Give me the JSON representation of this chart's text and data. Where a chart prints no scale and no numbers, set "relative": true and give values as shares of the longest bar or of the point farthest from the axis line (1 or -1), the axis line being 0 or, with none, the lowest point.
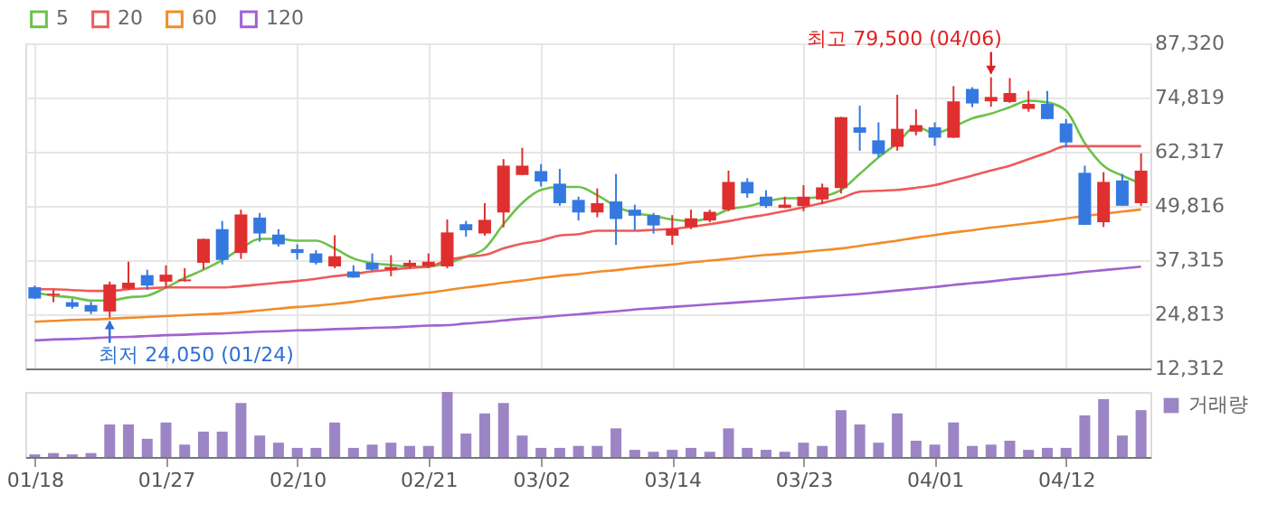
{
  "chart_data": [
    {
      "type": "candlestick",
      "categories": [
        null,
        null,
        null,
        null,
        null,
        null,
        null,
        null,
        null,
        null,
        null,
        null,
        null,
        null,
        null,
        null,
        null,
        null,
        null,
        null,
        null,
        null,
        null,
        null,
        null,
        null,
        null,
        null,
        null,
        null,
        null,
        null,
        null,
        null,
        null,
        null,
        null,
        null,
        null,
        null,
        null,
        null,
        null,
        null,
        null,
        null,
        null,
        null,
        null,
        null,
        null,
        null,
        null,
        null,
        null,
        null,
        null,
        null,
        null,
        null
      ],
      "ohlc": [
        [
          31050,
          31450,
          28350,
          28450
        ],
        [
          29200,
          30450,
          27600,
          29550
        ],
        [
          27600,
          28350,
          26100,
          26550
        ],
        [
          26950,
          27700,
          24850,
          25450
        ],
        [
          25450,
          32350,
          24050,
          31700
        ],
        [
          30700,
          36950,
          30450,
          32100
        ],
        [
          33850,
          35100,
          30450,
          31450
        ],
        [
          32350,
          36100,
          30850,
          33950
        ],
        [
          32450,
          35450,
          32350,
          32850
        ],
        [
          36700,
          42250,
          35200,
          42200
        ],
        [
          44450,
          46350,
          36300,
          37350
        ],
        [
          38950,
          48950,
          37600,
          47850
        ],
        [
          47100,
          48200,
          41550,
          43450
        ],
        [
          43200,
          44450,
          40450,
          40950
        ],
        [
          39850,
          40950,
          37450,
          38950
        ],
        [
          38850,
          39600,
          36300,
          36700
        ],
        [
          35850,
          43050,
          35450,
          38200
        ],
        [
          34700,
          36100,
          33250,
          33300
        ],
        [
          36700,
          38850,
          34800,
          35100
        ],
        [
          35100,
          38450,
          33600,
          35700
        ],
        [
          35850,
          37350,
          35450,
          36700
        ],
        [
          35850,
          38850,
          35450,
          36950
        ],
        [
          35850,
          46700,
          35450,
          43700
        ],
        [
          45600,
          46350,
          42700,
          44200
        ],
        [
          43450,
          50450,
          42950,
          46600
        ],
        [
          48300,
          60600,
          44850,
          59100
        ],
        [
          56950,
          63200,
          56900,
          59100
        ],
        [
          57850,
          59450,
          54300,
          55450
        ],
        [
          54950,
          58350,
          49850,
          50450
        ],
        [
          51200,
          51950,
          46450,
          48300
        ],
        [
          48300,
          53850,
          47200,
          50450
        ],
        [
          50850,
          57200,
          40800,
          46800
        ],
        [
          48950,
          50100,
          44200,
          47550
        ],
        [
          47700,
          48200,
          43450,
          45300
        ],
        [
          42950,
          47700,
          40800,
          44550
        ],
        [
          44950,
          48950,
          44450,
          46950
        ],
        [
          46450,
          48950,
          46050,
          48450
        ],
        [
          48950,
          57950,
          48600,
          55350
        ],
        [
          55350,
          56200,
          51700,
          52700
        ],
        [
          51950,
          53450,
          49350,
          49800
        ],
        [
          49350,
          51950,
          49300,
          50100
        ],
        [
          49800,
          54600,
          48600,
          51950
        ],
        [
          51300,
          54950,
          50200,
          54100
        ],
        [
          53950,
          70350,
          52700,
          70300
        ],
        [
          67950,
          72950,
          62550,
          66700
        ],
        [
          64950,
          69100,
          61050,
          61800
        ],
        [
          63450,
          75450,
          62550,
          67600
        ],
        [
          66950,
          72100,
          66100,
          68450
        ],
        [
          67950,
          69100,
          63700,
          65550
        ],
        [
          65550,
          77450,
          65500,
          73950
        ],
        [
          76800,
          77200,
          72600,
          73450
        ],
        [
          73950,
          79500,
          72700,
          74950
        ],
        [
          73800,
          79300,
          73600,
          75850
        ],
        [
          72200,
          76350,
          71550,
          73350
        ],
        [
          73350,
          76350,
          69800,
          69850
        ],
        [
          68850,
          69850,
          63300,
          64450
        ],
        [
          57450,
          59100,
          45400,
          45450
        ],
        [
          46050,
          57600,
          44950,
          55350
        ],
        [
          55700,
          57200,
          49800,
          49850
        ],
        [
          50450,
          61950,
          49800,
          57950
        ]
      ],
      "colors": [
        "#3579e0",
        "#e02f2f",
        "#3579e0",
        "#3579e0",
        "#e02f2f",
        "#e02f2f",
        "#3579e0",
        "#e02f2f",
        "#e02f2f",
        "#e02f2f",
        "#3579e0",
        "#e02f2f",
        "#3579e0",
        "#3579e0",
        "#3579e0",
        "#3579e0",
        "#e02f2f",
        "#3579e0",
        "#3579e0",
        "#e02f2f",
        "#e02f2f",
        "#e02f2f",
        "#e02f2f",
        "#3579e0",
        "#e02f2f",
        "#e02f2f",
        "#e02f2f",
        "#3579e0",
        "#3579e0",
        "#3579e0",
        "#e02f2f",
        "#3579e0",
        "#3579e0",
        "#3579e0",
        "#e02f2f",
        "#e02f2f",
        "#e02f2f",
        "#e02f2f",
        "#3579e0",
        "#3579e0",
        "#e02f2f",
        "#e02f2f",
        "#e02f2f",
        "#e02f2f",
        "#3579e0",
        "#3579e0",
        "#e02f2f",
        "#e02f2f",
        "#3579e0",
        "#e02f2f",
        "#3579e0",
        "#e02f2f",
        "#e02f2f",
        "#e02f2f",
        "#3579e0",
        "#3579e0",
        "#3579e0",
        "#e02f2f",
        "#3579e0",
        "#e02f2f"
      ],
      "series": [
        {
          "name": "5",
          "type": "line",
          "color": "#6cc24a",
          "values": [
            29800,
            29100,
            28700,
            28000,
            28000,
            28700,
            29100,
            31000,
            33200,
            35100,
            37300,
            40000,
            42200,
            42200,
            41800,
            41800,
            40000,
            37700,
            36600,
            36200,
            35800,
            35800,
            36600,
            38100,
            40000,
            45600,
            50500,
            53500,
            54200,
            54200,
            52300,
            49700,
            48200,
            47500,
            46700,
            46300,
            47100,
            49000,
            49700,
            50800,
            51600,
            51600,
            52000,
            53500,
            57200,
            61000,
            64300,
            68100,
            66600,
            68100,
            70000,
            71100,
            72600,
            74100,
            73700,
            71800,
            64300,
            59100,
            56800,
            55000
          ]
        },
        {
          "name": "20",
          "type": "line",
          "color": "#ee5a5a",
          "values": [
            30600,
            30600,
            30400,
            30200,
            30200,
            30600,
            30800,
            31000,
            31000,
            31000,
            31000,
            31300,
            31700,
            32100,
            32500,
            33000,
            33600,
            34100,
            34700,
            35100,
            35500,
            35800,
            37300,
            38100,
            38500,
            40000,
            41100,
            41800,
            43000,
            43300,
            44100,
            44100,
            44100,
            44300,
            44500,
            45000,
            45600,
            46300,
            47100,
            47800,
            48600,
            49500,
            50500,
            51600,
            53100,
            53300,
            53500,
            54000,
            54600,
            55700,
            56800,
            58000,
            59100,
            60600,
            62100,
            63600,
            63600,
            63600,
            63600,
            63600
          ]
        },
        {
          "name": "60",
          "type": "line",
          "color": "#f28c28",
          "values": [
            23100,
            23300,
            23500,
            23600,
            23800,
            24000,
            24200,
            24400,
            24600,
            24800,
            25000,
            25300,
            25700,
            26100,
            26500,
            26800,
            27200,
            27700,
            28300,
            28800,
            29300,
            29800,
            30400,
            31000,
            31500,
            32100,
            32600,
            33200,
            33700,
            34100,
            34600,
            35000,
            35500,
            35900,
            36300,
            36800,
            37200,
            37600,
            38100,
            38500,
            38800,
            39200,
            39600,
            40000,
            40600,
            41200,
            41800,
            42500,
            43100,
            43700,
            44200,
            44800,
            45300,
            45800,
            46300,
            46900,
            47500,
            48000,
            48500,
            49000
          ]
        },
        {
          "name": "120",
          "type": "line",
          "color": "#a062d0",
          "values": [
            18800,
            19000,
            19100,
            19300,
            19500,
            19600,
            19800,
            20000,
            20100,
            20300,
            20400,
            20600,
            20800,
            20900,
            21100,
            21200,
            21400,
            21500,
            21700,
            21800,
            22000,
            22200,
            22300,
            22700,
            23000,
            23400,
            23800,
            24100,
            24500,
            24800,
            25200,
            25500,
            25900,
            26200,
            26500,
            26800,
            27100,
            27400,
            27700,
            28000,
            28300,
            28600,
            28900,
            29200,
            29500,
            29900,
            30300,
            30700,
            31100,
            31600,
            32000,
            32400,
            32900,
            33300,
            33700,
            34100,
            34600,
            35000,
            35400,
            35800
          ]
        }
      ],
      "ylim": [
        12312,
        87320
      ],
      "yticks": [
        {
          "value": 12312,
          "label": "12,312"
        },
        {
          "value": 24813,
          "label": "24,813"
        },
        {
          "value": 37315,
          "label": "37,315"
        },
        {
          "value": 49816,
          "label": "49,816"
        },
        {
          "value": 62317,
          "label": "62,317"
        },
        {
          "value": 74819,
          "label": "74,819"
        },
        {
          "value": 87320,
          "label": "87,320"
        }
      ],
      "annotations": [
        "최저 24,050 (01/24)",
        "최고 79,500 (04/06)"
      ],
      "grid": true,
      "legend": "top left",
      "tick_labels": "y"
    },
    {
      "type": "bar",
      "relative": true,
      "categories": [
        "01/18",
        null,
        null,
        null,
        null,
        null,
        null,
        "01/27",
        null,
        null,
        null,
        null,
        null,
        null,
        "02/10",
        null,
        null,
        null,
        null,
        null,
        null,
        "02/21",
        null,
        null,
        null,
        null,
        null,
        "03/02",
        null,
        null,
        null,
        null,
        null,
        null,
        "03/14",
        null,
        null,
        null,
        null,
        null,
        null,
        "03/23",
        null,
        null,
        null,
        null,
        null,
        null,
        "04/01",
        null,
        null,
        null,
        null,
        null,
        null,
        "04/12",
        null,
        null,
        null,
        null
      ],
      "series": [
        {
          "name": "거래량",
          "color": "#9b85c5",
          "values": [
            0.04,
            0.06,
            0.04,
            0.06,
            0.5,
            0.5,
            0.28,
            0.53,
            0.19,
            0.39,
            0.39,
            0.83,
            0.33,
            0.22,
            0.14,
            0.14,
            0.53,
            0.14,
            0.19,
            0.22,
            0.17,
            0.17,
            1,
            0.36,
            0.67,
            0.83,
            0.33,
            0.14,
            0.14,
            0.17,
            0.17,
            0.44,
            0.11,
            0.08,
            0.11,
            0.14,
            0.08,
            0.44,
            0.14,
            0.11,
            0.08,
            0.22,
            0.17,
            0.72,
            0.5,
            0.22,
            0.67,
            0.25,
            0.19,
            0.53,
            0.17,
            0.19,
            0.25,
            0.11,
            0.14,
            0.14,
            0.64,
            0.89,
            0.33,
            0.72
          ]
        }
      ],
      "legend": "top right",
      "tick_labels": "x"
    }
  ]
}
